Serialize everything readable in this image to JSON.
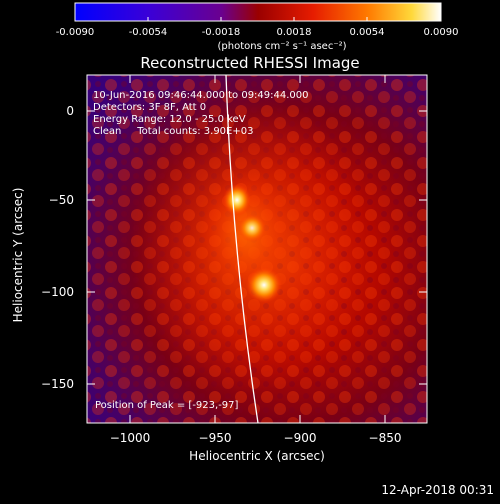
{
  "colorbar": {
    "tick_labels": [
      "-0.0090",
      "-0.0054",
      "-0.0018",
      "0.0018",
      "0.0054",
      "0.0090"
    ],
    "unit_label": "(photons cm⁻² s⁻¹ asec⁻²)"
  },
  "title": "Reconstructed RHESSI Image",
  "info": {
    "time_range": "10-Jun-2016 09:46:44.000 to 09:49:44.000",
    "detectors": "Detectors: 3F 8F, Att 0",
    "energy_range": "Energy Range: 12.0 - 25.0 keV",
    "method": "Clean     Total counts: 3.90E+03",
    "peak": "Position of Peak = [-923,-97]"
  },
  "x_axis": {
    "label": "Heliocentric X (arcsec)",
    "tick_labels": [
      "−1000",
      "−950",
      "−900",
      "−850"
    ]
  },
  "y_axis": {
    "label": "Heliocentric Y (arcsec)",
    "tick_labels": [
      "0",
      "−50",
      "−100",
      "−150"
    ]
  },
  "footer_date": "12-Apr-2018 00:31"
}
